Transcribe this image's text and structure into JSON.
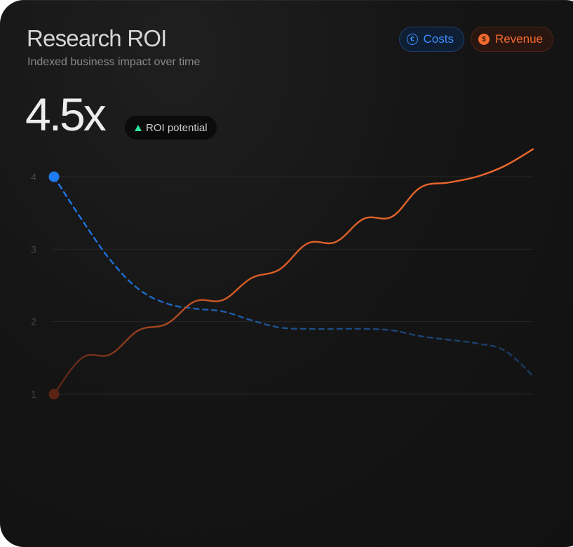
{
  "header": {
    "title": "Research ROI",
    "subtitle": "Indexed business impact over time"
  },
  "legend": {
    "costs_label": "Costs",
    "revenue_label": "Revenue",
    "costs_icon": "euro-circle-icon",
    "revenue_icon": "dollar-circle-icon"
  },
  "kpi": {
    "value": "4.5x",
    "badge_label": "ROI potential",
    "badge_icon": "up-triangle-icon",
    "badge_color": "#2ee59d"
  },
  "colors": {
    "costs": "#1e7bf0",
    "revenue": "#f26a2e",
    "background": "#141414"
  },
  "chart_data": {
    "type": "line",
    "title": "Research ROI",
    "y_ticks": [
      "4",
      "3",
      "2",
      "1"
    ],
    "ylim": [
      1,
      4
    ],
    "grid": true,
    "legend_position": "top-right",
    "x": [
      0,
      1,
      2,
      3,
      4,
      5,
      6,
      7,
      8,
      9,
      10,
      11,
      12,
      13,
      14,
      15,
      16,
      17
    ],
    "series": [
      {
        "name": "Costs",
        "style": "dashed",
        "color": "#1e7bf0",
        "values": [
          4.0,
          3.4,
          2.85,
          2.45,
          2.25,
          2.18,
          2.14,
          2.02,
          1.92,
          1.9,
          1.9,
          1.9,
          1.88,
          1.8,
          1.75,
          1.7,
          1.6,
          1.25
        ]
      },
      {
        "name": "Revenue",
        "style": "solid",
        "color": "#f26a2e",
        "values": [
          1.0,
          1.5,
          1.55,
          1.88,
          1.97,
          2.28,
          2.3,
          2.6,
          2.72,
          3.08,
          3.1,
          3.42,
          3.45,
          3.85,
          3.92,
          4.0,
          4.15,
          4.38
        ]
      }
    ]
  }
}
